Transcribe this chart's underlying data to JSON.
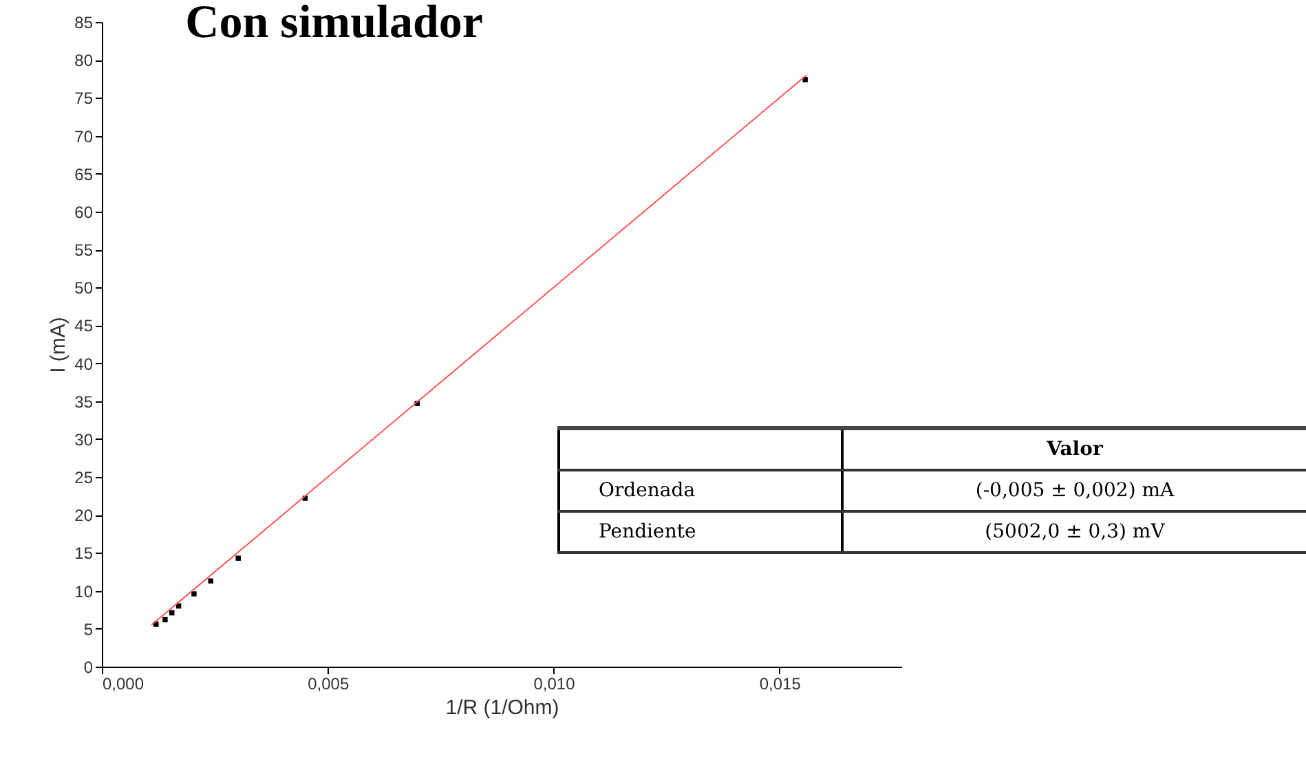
{
  "chart_data": {
    "type": "scatter",
    "title": "Con simulador",
    "xlabel": "1/R (1/Ohm)",
    "ylabel": "I (mA)",
    "x": [
      0.0012,
      0.0014,
      0.00155,
      0.0017,
      0.00204,
      0.00241,
      0.00302,
      0.0045,
      0.00698,
      0.01557
    ],
    "series": [
      {
        "color": "#000000",
        "marker": "square",
        "values": [
          5.6,
          6.2,
          7.1,
          8.0,
          9.6,
          11.3,
          14.3,
          22.2,
          34.7,
          77.4
        ]
      },
      {
        "type": "line",
        "color": "#ff5555",
        "x": [
          0.0011,
          0.0156
        ],
        "values": [
          5.5,
          78.0
        ]
      }
    ],
    "grid": false,
    "xlim": [
      0,
      0.0177
    ],
    "xticks": [
      {
        "value": 0,
        "label": "0,000"
      },
      {
        "value": 0.005,
        "label": "0,005"
      },
      {
        "value": 0.01,
        "label": "0,010"
      },
      {
        "value": 0.015,
        "label": "0,015"
      }
    ],
    "ylim": [
      0,
      85
    ],
    "yticks": [
      0,
      5,
      10,
      15,
      20,
      25,
      30,
      35,
      40,
      45,
      50,
      55,
      60,
      65,
      70,
      75,
      80,
      85
    ],
    "annotations": [
      "Valor",
      "Ordenada",
      "(-0,005 ± 0,002) mA",
      "Pendiente",
      "(5002,0 ± 0,3) mV"
    ]
  }
}
